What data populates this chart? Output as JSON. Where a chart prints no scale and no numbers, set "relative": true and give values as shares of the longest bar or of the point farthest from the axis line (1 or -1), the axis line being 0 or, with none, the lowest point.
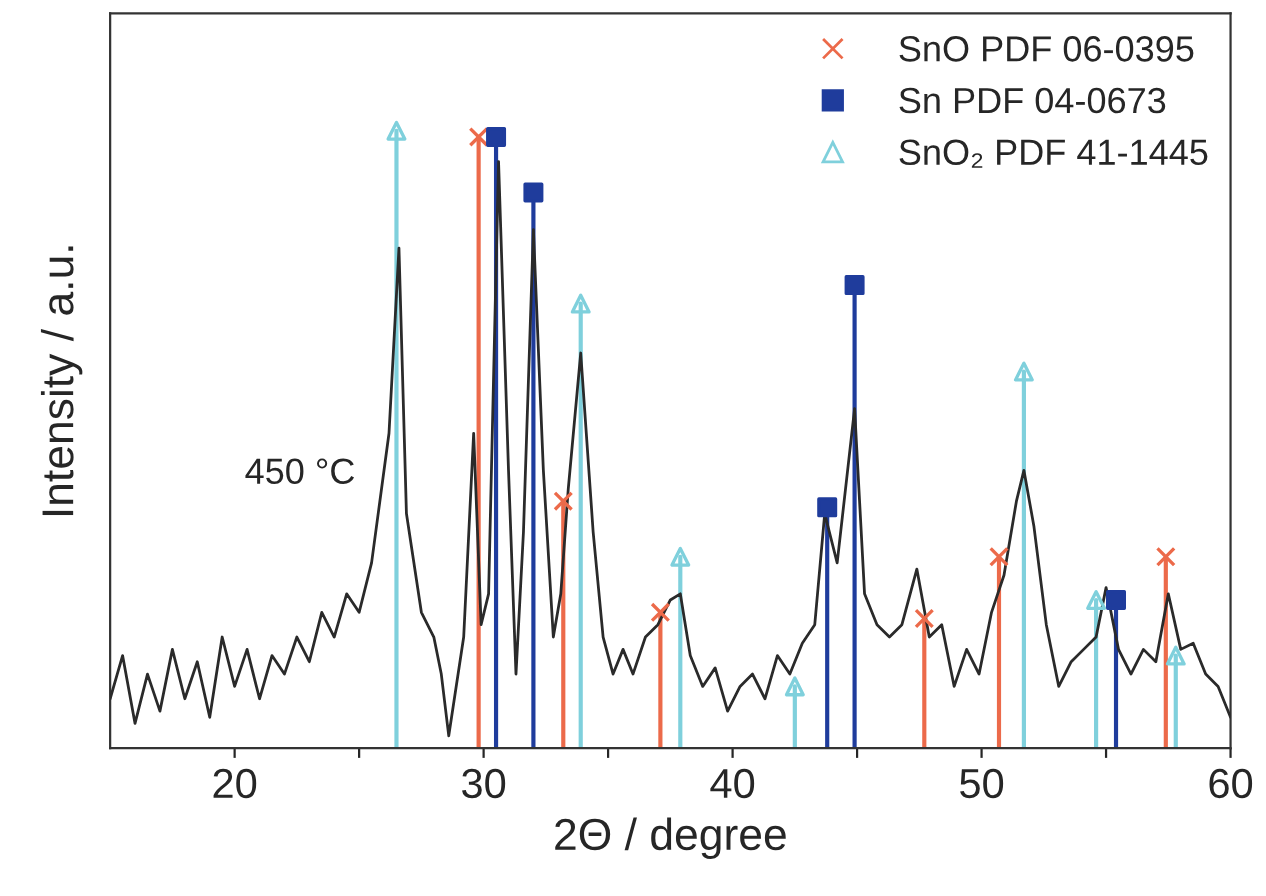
{
  "chart_data": {
    "type": "line",
    "xlabel": "2Θ / degree",
    "ylabel": "Intensity / a.u.",
    "relative": true,
    "xlim": [
      15,
      60
    ],
    "xticks": [
      20,
      {
        "value": 25,
        "label": null
      },
      30,
      {
        "value": 35,
        "label": null
      },
      40,
      {
        "value": 45,
        "label": null
      },
      50,
      {
        "value": 55,
        "label": null
      },
      60
    ],
    "legend": "top right",
    "grid": false,
    "annotations": [
      "450 °C"
    ],
    "series": [
      {
        "color": "#2a2a2a",
        "marker": "none",
        "x": [
          15.0,
          15.5,
          16.0,
          16.5,
          17.0,
          17.5,
          18.0,
          18.5,
          19.0,
          19.5,
          20.0,
          20.5,
          21.0,
          21.5,
          22.0,
          22.5,
          23.0,
          23.5,
          24.0,
          24.5,
          25.0,
          25.5,
          26.2,
          26.6,
          26.9,
          27.5,
          28.0,
          28.3,
          28.6,
          29.2,
          29.6,
          29.9,
          30.2,
          30.6,
          31.0,
          31.3,
          31.6,
          32.0,
          32.4,
          32.8,
          33.1,
          33.4,
          33.9,
          34.4,
          34.8,
          35.2,
          35.6,
          36.0,
          36.5,
          37.0,
          37.5,
          37.9,
          38.3,
          38.8,
          39.3,
          39.8,
          40.3,
          40.8,
          41.3,
          41.8,
          42.3,
          42.8,
          43.3,
          43.7,
          44.2,
          44.9,
          45.3,
          45.8,
          46.3,
          46.8,
          47.4,
          47.9,
          48.4,
          48.9,
          49.4,
          49.9,
          50.4,
          50.9,
          51.4,
          51.7,
          52.1,
          52.6,
          53.1,
          53.6,
          54.1,
          54.6,
          55.0,
          55.5,
          56.0,
          56.5,
          57.0,
          57.5,
          58.0,
          58.5,
          59.0,
          59.5,
          60.0
        ],
        "values": [
          0.08,
          0.15,
          0.04,
          0.12,
          0.06,
          0.16,
          0.08,
          0.14,
          0.05,
          0.18,
          0.1,
          0.16,
          0.08,
          0.15,
          0.12,
          0.18,
          0.14,
          0.22,
          0.18,
          0.25,
          0.22,
          0.3,
          0.51,
          0.81,
          0.38,
          0.22,
          0.18,
          0.12,
          0.02,
          0.18,
          0.51,
          0.2,
          0.25,
          0.95,
          0.45,
          0.12,
          0.35,
          0.84,
          0.45,
          0.18,
          0.25,
          0.42,
          0.64,
          0.35,
          0.18,
          0.12,
          0.16,
          0.12,
          0.18,
          0.2,
          0.24,
          0.25,
          0.15,
          0.1,
          0.13,
          0.06,
          0.1,
          0.12,
          0.08,
          0.15,
          0.12,
          0.17,
          0.2,
          0.38,
          0.3,
          0.55,
          0.25,
          0.2,
          0.18,
          0.2,
          0.29,
          0.18,
          0.2,
          0.1,
          0.16,
          0.12,
          0.22,
          0.28,
          0.4,
          0.45,
          0.36,
          0.2,
          0.1,
          0.14,
          0.16,
          0.18,
          0.26,
          0.16,
          0.12,
          0.16,
          0.14,
          0.25,
          0.16,
          0.17,
          0.12,
          0.1,
          0.05
        ]
      },
      {
        "type": "lollipop",
        "name": "SnO PDF 06-0395",
        "color": "#ec6a4a",
        "marker": "cross",
        "x": [
          29.8,
          33.2,
          37.1,
          47.7,
          50.7,
          57.4
        ],
        "values": [
          0.99,
          0.4,
          0.22,
          0.21,
          0.31,
          0.31
        ]
      },
      {
        "type": "lollipop",
        "name": "Sn PDF 04-0673",
        "color": "#1f3c9c",
        "marker": "square",
        "x": [
          30.5,
          32.0,
          43.8,
          44.9,
          55.4
        ],
        "values": [
          0.99,
          0.9,
          0.39,
          0.75,
          0.24
        ]
      },
      {
        "type": "lollipop",
        "name": "SnO₂ PDF 41-1445",
        "color": "#7fd0dc",
        "marker": "triangle",
        "x": [
          26.5,
          33.9,
          37.9,
          42.5,
          51.7,
          54.6,
          57.8
        ],
        "values": [
          1.0,
          0.72,
          0.31,
          0.1,
          0.61,
          0.24,
          0.15
        ]
      }
    ]
  }
}
